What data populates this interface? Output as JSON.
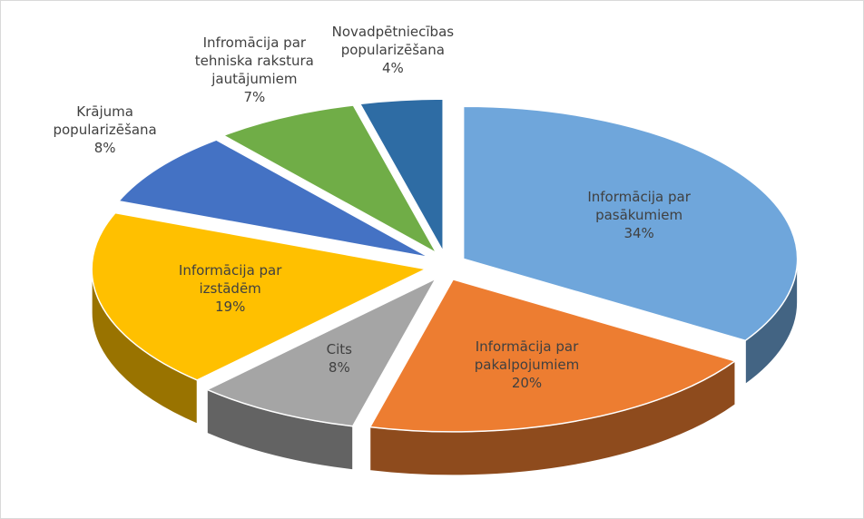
{
  "chart_data": {
    "type": "pie",
    "categories": [
      "Informācija par pasākumiem",
      "Informācija par pakalpojumiem",
      "Cits",
      "Informācija par izstādēm",
      "Krājuma popularizēšana",
      "Infromācija par tehniska rakstura jautājumiem",
      "Novadpētniecības popularizēšana"
    ],
    "values": [
      34,
      20,
      8,
      19,
      8,
      7,
      4
    ],
    "value_labels": [
      "34%",
      "20%",
      "8%",
      "19%",
      "8%",
      "7%",
      "4%"
    ],
    "colors": [
      "#6fa6db",
      "#ed7d31",
      "#a5a5a5",
      "#ffc000",
      "#4472c4",
      "#70ad47",
      "#2e6ca4"
    ]
  }
}
